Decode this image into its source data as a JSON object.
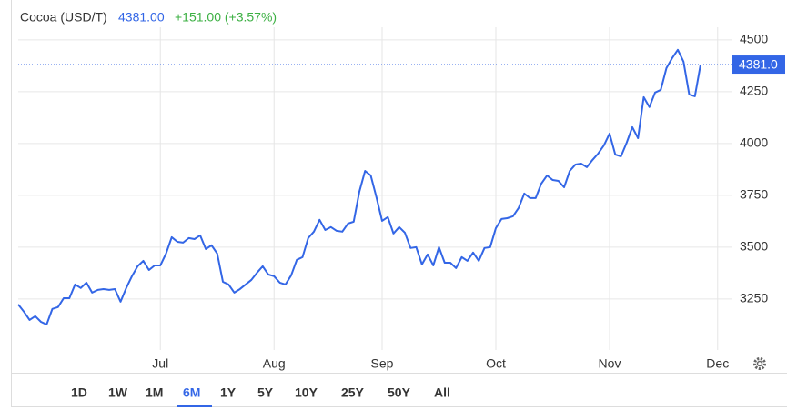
{
  "chart_data": {
    "type": "line",
    "header": {
      "name": "Cocoa (USD/T)",
      "price": "4381.00",
      "change": "+151.00 (+3.57%)"
    },
    "categories": [
      null,
      null,
      null,
      null,
      null,
      null,
      null,
      null,
      null,
      null,
      null,
      null,
      null,
      null,
      null,
      null,
      null,
      null,
      null,
      null,
      null,
      null,
      null,
      null,
      null,
      "Jul",
      null,
      null,
      null,
      null,
      null,
      null,
      null,
      null,
      null,
      null,
      null,
      null,
      null,
      null,
      null,
      null,
      null,
      null,
      null,
      "Aug",
      null,
      null,
      null,
      null,
      null,
      null,
      null,
      null,
      null,
      null,
      null,
      null,
      null,
      null,
      null,
      null,
      null,
      null,
      "Sep",
      null,
      null,
      null,
      null,
      null,
      null,
      null,
      null,
      null,
      null,
      null,
      null,
      null,
      null,
      null,
      null,
      null,
      null,
      null,
      "Oct",
      null,
      null,
      null,
      null,
      null,
      null,
      null,
      null,
      null,
      null,
      null,
      null,
      null,
      null,
      null,
      null,
      null,
      null,
      null,
      "Nov",
      null,
      null,
      null,
      null,
      null,
      null,
      null,
      null,
      null,
      null,
      null,
      null,
      null,
      null,
      null,
      null,
      null,
      null,
      "Dec"
    ],
    "series": [
      {
        "name": "Cocoa",
        "color": "#3366e6",
        "values": [
          3224,
          3189,
          3149,
          3167,
          3140,
          3127,
          3202,
          3211,
          3254,
          3254,
          3320,
          3303,
          3329,
          3281,
          3294,
          3298,
          3294,
          3298,
          3237,
          3303,
          3360,
          3408,
          3434,
          3390,
          3412,
          3412,
          3469,
          3548,
          3526,
          3522,
          3544,
          3539,
          3557,
          3491,
          3509,
          3469,
          3333,
          3320,
          3281,
          3298,
          3320,
          3342,
          3377,
          3408,
          3368,
          3360,
          3329,
          3320,
          3364,
          3439,
          3452,
          3544,
          3575,
          3632,
          3583,
          3597,
          3579,
          3575,
          3614,
          3623,
          3768,
          3868,
          3846,
          3741,
          3627,
          3645,
          3566,
          3597,
          3570,
          3496,
          3500,
          3417,
          3465,
          3412,
          3500,
          3425,
          3425,
          3399,
          3452,
          3434,
          3474,
          3434,
          3496,
          3500,
          3592,
          3636,
          3640,
          3649,
          3689,
          3759,
          3737,
          3737,
          3807,
          3846,
          3824,
          3820,
          3789,
          3868,
          3899,
          3903,
          3886,
          3921,
          3952,
          3991,
          4048,
          3947,
          3938,
          4004,
          4079,
          4026,
          4224,
          4176,
          4246,
          4259,
          4364,
          4412,
          4452,
          4395,
          4237,
          4228,
          4381,
          null,
          null,
          null
        ]
      }
    ],
    "current": {
      "value": 4381,
      "label": "4381.0"
    },
    "ylim": [
      3004,
      4561
    ],
    "yticks": [
      3250,
      3500,
      3750,
      4000,
      4250,
      4500
    ],
    "grid": true,
    "ranges": [
      "1D",
      "1W",
      "1M",
      "6M",
      "1Y",
      "5Y",
      "10Y",
      "25Y",
      "50Y",
      "All"
    ],
    "active_range": "6M"
  }
}
